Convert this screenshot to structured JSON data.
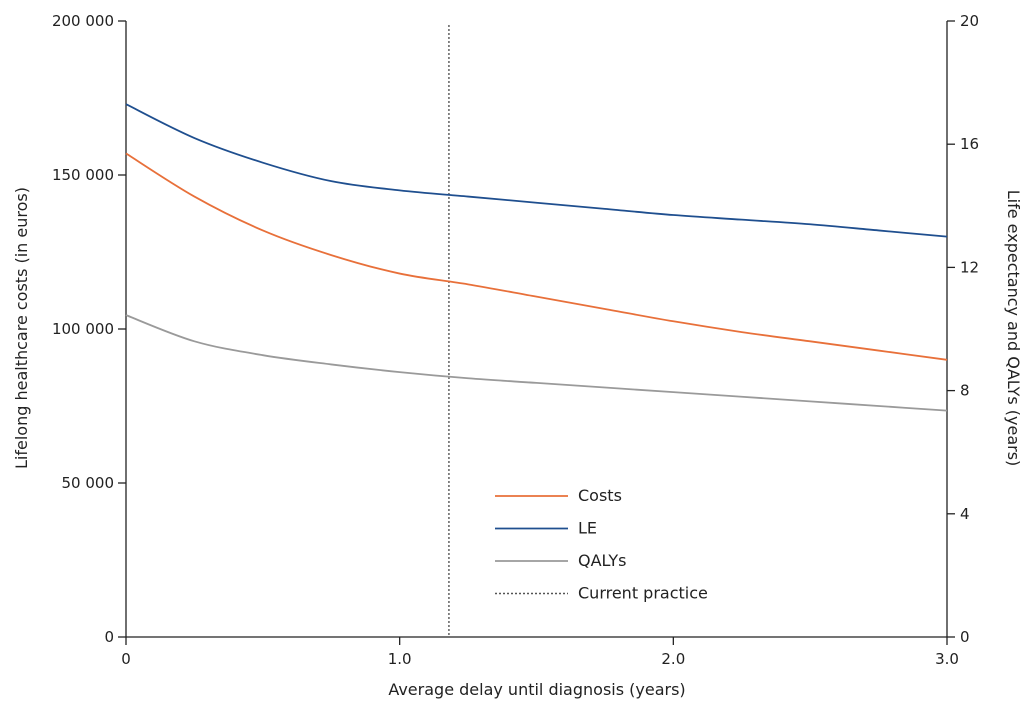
{
  "chart_data": {
    "type": "line",
    "x_label": "Average delay until diagnosis (years)",
    "y_left_label": "Lifelong healthcare costs (in euros)",
    "y_right_label": "Life expectancy and QALYs (years)",
    "x_range": [
      0,
      3.0
    ],
    "y_left_range": [
      0,
      200000
    ],
    "y_right_range": [
      0,
      20
    ],
    "x_ticks": [
      "0",
      "1.0",
      "2.0",
      "3.0"
    ],
    "y_left_ticks": [
      "0",
      "50 000",
      "100 000",
      "150 000",
      "200 000"
    ],
    "y_right_ticks": [
      "0",
      "4",
      "8",
      "12",
      "16",
      "20"
    ],
    "grid": false,
    "legend_position": "bottom-center",
    "reference_line": {
      "name": "Current practice",
      "x": 1.18,
      "style": "dotted",
      "color": "#555555"
    },
    "x": [
      0,
      0.25,
      0.5,
      0.75,
      1.0,
      1.25,
      1.5,
      1.75,
      2.0,
      2.25,
      2.5,
      2.75,
      3.0
    ],
    "series": [
      {
        "name": "Costs",
        "axis": "left",
        "color": "#e8703a",
        "values": [
          157000,
          143000,
          132000,
          124000,
          118000,
          114500,
          110500,
          106500,
          102500,
          99000,
          96000,
          93000,
          90000
        ]
      },
      {
        "name": "LE",
        "axis": "right",
        "color": "#1f4f8f",
        "values": [
          17.3,
          16.2,
          15.4,
          14.8,
          14.5,
          14.3,
          14.1,
          13.9,
          13.7,
          13.55,
          13.4,
          13.2,
          13.0
        ]
      },
      {
        "name": "QALYs",
        "axis": "right",
        "color": "#9a9a9a",
        "values": [
          10.45,
          9.6,
          9.15,
          8.85,
          8.6,
          8.4,
          8.25,
          8.1,
          7.95,
          7.8,
          7.65,
          7.5,
          7.35
        ]
      }
    ]
  }
}
